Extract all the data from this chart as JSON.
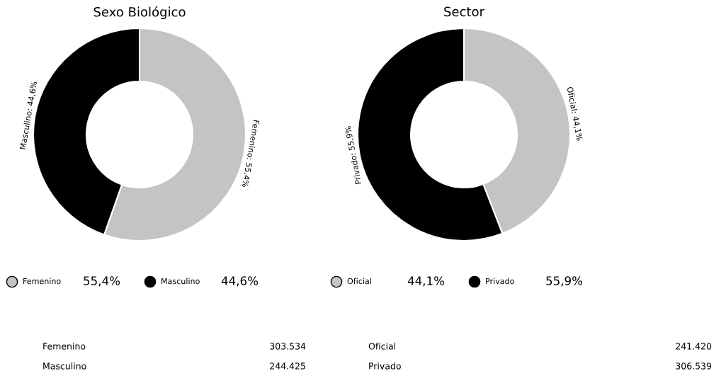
{
  "chart_data": [
    {
      "type": "donut",
      "title": "Sexo Biológico",
      "categories": [
        "Femenino",
        "Masculino"
      ],
      "values": [
        55.4,
        44.6
      ],
      "colors": [
        "#c4c4c4",
        "#000000"
      ],
      "value_labels": [
        "Femenino: 55,4%",
        "Masculino: 44,6%"
      ],
      "legend": "bottom",
      "annotations": [
        "55,4%",
        "44,6%",
        "Femenino",
        "303.534",
        "Masculino",
        "244.425"
      ]
    },
    {
      "type": "donut",
      "title": "Sector",
      "categories": [
        "Oficial",
        "Privado"
      ],
      "values": [
        44.1,
        55.9
      ],
      "colors": [
        "#c4c4c4",
        "#000000"
      ],
      "value_labels": [
        "Oficial: 44,1%",
        "Privado: 55,9%"
      ],
      "legend": "bottom",
      "annotations": [
        "44,1%",
        "55,9%",
        "Oficial",
        "241.420",
        "Privado",
        "306.539"
      ]
    }
  ]
}
